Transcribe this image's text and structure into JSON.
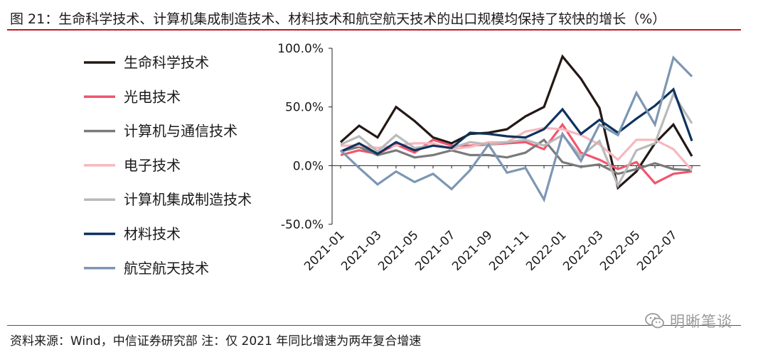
{
  "header": {
    "title": "图 21：生命科学技术、计算机集成制造技术、材料技术和航空航天技术的出口规模均保持了较快的增长（%）"
  },
  "footer": {
    "source": "资料来源：Wind，中信证券研究部  注：仅 2021 年同比增速为两年复合增速",
    "watermark": "明晰笔谈"
  },
  "chart_data": {
    "type": "line",
    "title": "",
    "xlabel": "",
    "ylabel": "",
    "ylim": [
      -50,
      100
    ],
    "yticks": [
      -50,
      0,
      50,
      100
    ],
    "ytick_labels": [
      "-50.0%",
      "0.0%",
      "50.0%",
      "100.0%"
    ],
    "grid": false,
    "legend_position": "left",
    "x": [
      "2021-01",
      "2021-02",
      "2021-03",
      "2021-04",
      "2021-05",
      "2021-06",
      "2021-07",
      "2021-08",
      "2021-09",
      "2021-10",
      "2021-11",
      "2021-12",
      "2022-01",
      "2022-02",
      "2022-03",
      "2022-04",
      "2022-05",
      "2022-06",
      "2022-07",
      "2022-08"
    ],
    "xtick_labels": [
      "2021-01",
      "2021-03",
      "2021-05",
      "2021-07",
      "2021-09",
      "2021-11",
      "2022-01",
      "2022-03",
      "2022-05",
      "2022-07"
    ],
    "series": [
      {
        "name": "生命科学技术",
        "color": "#231815",
        "values": [
          20,
          34,
          24,
          50,
          38,
          24,
          19,
          27,
          28,
          31,
          42,
          50,
          93,
          74,
          49,
          -19,
          -5,
          19,
          35,
          8
        ]
      },
      {
        "name": "光电技术",
        "color": "#f0566e",
        "values": [
          9,
          13,
          10,
          18,
          11,
          22,
          17,
          17,
          18,
          19,
          20,
          14,
          35,
          11,
          5,
          -3,
          3,
          -15,
          -7,
          -5
        ]
      },
      {
        "name": "计算机与通信技术",
        "color": "#7a7a7a",
        "values": [
          12,
          16,
          9,
          13,
          7,
          9,
          13,
          9,
          9,
          7,
          11,
          22,
          3,
          -1,
          1,
          -7,
          -3,
          2,
          -3,
          -4
        ]
      },
      {
        "name": "电子技术",
        "color": "#f7b7be",
        "values": [
          17,
          17,
          15,
          17,
          19,
          19,
          14,
          16,
          20,
          20,
          29,
          32,
          31,
          26,
          18,
          5,
          22,
          22,
          14,
          -4
        ]
      },
      {
        "name": "计算机集成制造技术",
        "color": "#b9b9b9",
        "values": [
          18,
          25,
          12,
          26,
          15,
          17,
          15,
          20,
          18,
          20,
          22,
          17,
          26,
          8,
          21,
          -17,
          13,
          19,
          61,
          36
        ]
      },
      {
        "name": "材料技术",
        "color": "#0d335e",
        "values": [
          12,
          19,
          10,
          20,
          13,
          17,
          15,
          28,
          27,
          25,
          24,
          31,
          48,
          27,
          39,
          28,
          40,
          51,
          65,
          21
        ]
      },
      {
        "name": "航空航天技术",
        "color": "#7d96b3",
        "values": [
          13,
          -2,
          -16,
          -5,
          -14,
          -7,
          -20,
          -4,
          18,
          -6,
          -2,
          -29,
          27,
          4,
          35,
          26,
          62,
          35,
          92,
          76
        ]
      }
    ]
  }
}
